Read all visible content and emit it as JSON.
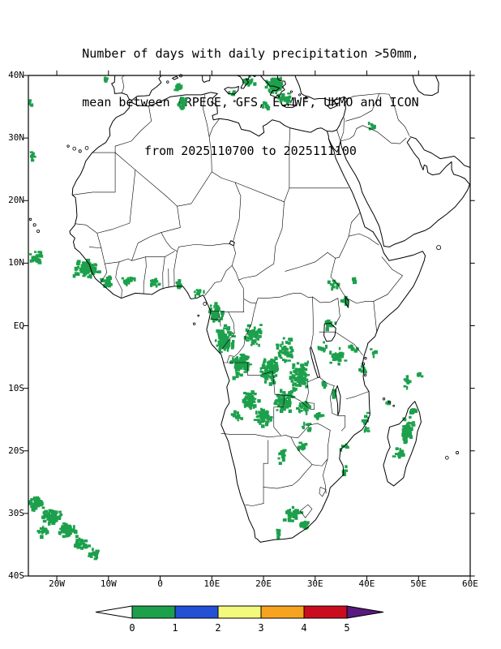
{
  "title": {
    "line1": "Number of days with daily precipitation >50mm,",
    "line2": "mean between ARPEGE, GFS, ECMWF, UKMO and ICON",
    "line3": "from 2025110700 to 2025111100"
  },
  "axes": {
    "lat_ticks": [
      {
        "label": "40N",
        "deg": 40
      },
      {
        "label": "30N",
        "deg": 30
      },
      {
        "label": "20N",
        "deg": 20
      },
      {
        "label": "10N",
        "deg": 10
      },
      {
        "label": "EQ",
        "deg": 0
      },
      {
        "label": "10S",
        "deg": -10
      },
      {
        "label": "20S",
        "deg": -20
      },
      {
        "label": "30S",
        "deg": -30
      },
      {
        "label": "40S",
        "deg": -40
      }
    ],
    "lon_ticks": [
      {
        "label": "20W",
        "deg": -20
      },
      {
        "label": "10W",
        "deg": -10
      },
      {
        "label": "0",
        "deg": 0
      },
      {
        "label": "10E",
        "deg": 10
      },
      {
        "label": "20E",
        "deg": 20
      },
      {
        "label": "30E",
        "deg": 30
      },
      {
        "label": "40E",
        "deg": 40
      },
      {
        "label": "50E",
        "deg": 50
      },
      {
        "label": "60E",
        "deg": 60
      }
    ]
  },
  "chart_data": {
    "type": "heatmap",
    "title": "Number of days with daily precipitation >50mm, mean between ARPEGE, GFS, ECMWF, UKMO and ICON",
    "subtitle": "from 2025110700 to 2025111100",
    "variable": "days with daily precipitation >50mm",
    "threshold_mm": 50,
    "models": [
      "ARPEGE",
      "GFS",
      "ECMWF",
      "UKMO",
      "ICON"
    ],
    "period_start": "2025110700",
    "period_end": "2025111100",
    "map_extent": {
      "lon_min": -25.5,
      "lon_max": 60,
      "lat_min": -40,
      "lat_max": 40
    },
    "colorbar": {
      "boundaries": [
        "0",
        "1",
        "2",
        "3",
        "4",
        "5"
      ],
      "colors": [
        "#ffffff",
        "#1ca04c",
        "#2450d6",
        "#f3f97b",
        "#f6a41f",
        "#c90d1e",
        "#571a7e"
      ]
    },
    "region_value_days": "0-1",
    "precip_regions": [
      {
        "lon": -10.8,
        "lat": 39.6,
        "rx": 0.7,
        "ry": 0.5,
        "n": 8
      },
      {
        "lon": 3.3,
        "lat": 38.3,
        "rx": 1.0,
        "ry": 0.8,
        "n": 14
      },
      {
        "lon": 3.9,
        "lat": 35.6,
        "rx": 1.2,
        "ry": 1.3,
        "n": 22
      },
      {
        "lon": 21.8,
        "lat": 38.6,
        "rx": 2.2,
        "ry": 1.6,
        "n": 70
      },
      {
        "lon": 23.8,
        "lat": 36.6,
        "rx": 1.5,
        "ry": 1.2,
        "n": 25
      },
      {
        "lon": 20.3,
        "lat": 35.4,
        "rx": 1.2,
        "ry": 0.9,
        "n": 12
      },
      {
        "lon": 16.8,
        "lat": 39.3,
        "rx": 1.4,
        "ry": 0.9,
        "n": 20
      },
      {
        "lon": 13.8,
        "lat": 37.4,
        "rx": 0.8,
        "ry": 0.6,
        "n": 6
      },
      {
        "lon": 40.8,
        "lat": 32.2,
        "rx": 0.9,
        "ry": 0.7,
        "n": 10
      },
      {
        "lon": -25.0,
        "lat": 27.3,
        "rx": 0.6,
        "ry": 1.0,
        "n": 8
      },
      {
        "lon": -25.2,
        "lat": 35.8,
        "rx": 0.5,
        "ry": 0.7,
        "n": 5
      },
      {
        "lon": -24.2,
        "lat": 11.2,
        "rx": 1.6,
        "ry": 1.2,
        "n": 25
      },
      {
        "lon": -14.6,
        "lat": 9.2,
        "rx": 3.2,
        "ry": 1.8,
        "n": 90
      },
      {
        "lon": -10.5,
        "lat": 7.2,
        "rx": 1.6,
        "ry": 1.2,
        "n": 25
      },
      {
        "lon": -6.3,
        "lat": 7.6,
        "rx": 1.8,
        "ry": 1.1,
        "n": 16
      },
      {
        "lon": -1.5,
        "lat": 7.0,
        "rx": 2.0,
        "ry": 1.0,
        "n": 16
      },
      {
        "lon": 3.2,
        "lat": 6.9,
        "rx": 1.5,
        "ry": 0.9,
        "n": 10
      },
      {
        "lon": 7.2,
        "lat": 5.6,
        "rx": 1.3,
        "ry": 1.0,
        "n": 12
      },
      {
        "lon": 10.6,
        "lat": 2.2,
        "rx": 1.8,
        "ry": 1.8,
        "n": 45
      },
      {
        "lon": 12.3,
        "lat": -2.2,
        "rx": 2.2,
        "ry": 2.6,
        "n": 95
      },
      {
        "lon": 15.3,
        "lat": -5.8,
        "rx": 2.2,
        "ry": 2.6,
        "n": 85
      },
      {
        "lon": 17.8,
        "lat": -1.2,
        "rx": 2.0,
        "ry": 2.2,
        "n": 45
      },
      {
        "lon": 20.8,
        "lat": -6.8,
        "rx": 2.4,
        "ry": 2.8,
        "n": 90
      },
      {
        "lon": 23.8,
        "lat": -3.8,
        "rx": 2.4,
        "ry": 2.6,
        "n": 55
      },
      {
        "lon": 26.6,
        "lat": -7.8,
        "rx": 2.6,
        "ry": 2.8,
        "n": 85
      },
      {
        "lon": 23.8,
        "lat": -11.8,
        "rx": 2.8,
        "ry": 2.2,
        "n": 70
      },
      {
        "lon": 17.2,
        "lat": -11.8,
        "rx": 2.2,
        "ry": 2.0,
        "n": 45
      },
      {
        "lon": 19.8,
        "lat": -14.6,
        "rx": 2.4,
        "ry": 1.8,
        "n": 45
      },
      {
        "lon": 14.8,
        "lat": -14.2,
        "rx": 1.4,
        "ry": 1.2,
        "n": 14
      },
      {
        "lon": 27.4,
        "lat": -12.8,
        "rx": 1.8,
        "ry": 1.5,
        "n": 25
      },
      {
        "lon": 30.4,
        "lat": -14.2,
        "rx": 1.2,
        "ry": 1.0,
        "n": 10
      },
      {
        "lon": 33.4,
        "lat": -10.8,
        "rx": 1.0,
        "ry": 0.9,
        "n": 8
      },
      {
        "lon": 28.2,
        "lat": -15.8,
        "rx": 1.2,
        "ry": 1.0,
        "n": 8
      },
      {
        "lon": 31.4,
        "lat": -9.4,
        "rx": 0.9,
        "ry": 0.8,
        "n": 6
      },
      {
        "lon": 32.6,
        "lat": 0.3,
        "rx": 1.5,
        "ry": 1.3,
        "n": 18
      },
      {
        "lon": 34.2,
        "lat": -4.8,
        "rx": 2.0,
        "ry": 1.8,
        "n": 30
      },
      {
        "lon": 31.2,
        "lat": -3.2,
        "rx": 1.2,
        "ry": 1.0,
        "n": 10
      },
      {
        "lon": 36.8,
        "lat": -3.4,
        "rx": 1.2,
        "ry": 0.9,
        "n": 10
      },
      {
        "lon": 38.8,
        "lat": -6.8,
        "rx": 1.0,
        "ry": 1.0,
        "n": 8
      },
      {
        "lon": 33.2,
        "lat": 6.8,
        "rx": 1.4,
        "ry": 1.0,
        "n": 10
      },
      {
        "lon": 35.6,
        "lat": 4.2,
        "rx": 1.2,
        "ry": 1.0,
        "n": 8
      },
      {
        "lon": 37.4,
        "lat": 7.4,
        "rx": 0.8,
        "ry": 0.7,
        "n": 5
      },
      {
        "lon": 41.2,
        "lat": -4.2,
        "rx": 0.8,
        "ry": 1.0,
        "n": 7
      },
      {
        "lon": 47.6,
        "lat": -8.8,
        "rx": 1.2,
        "ry": 1.0,
        "n": 9
      },
      {
        "lon": 50.2,
        "lat": -7.6,
        "rx": 0.8,
        "ry": 0.7,
        "n": 5
      },
      {
        "lon": 43.9,
        "lat": -12.1,
        "rx": 0.6,
        "ry": 0.5,
        "n": 4
      },
      {
        "lon": 47.6,
        "lat": -16.6,
        "rx": 1.5,
        "ry": 2.4,
        "n": 55
      },
      {
        "lon": 48.6,
        "lat": -13.4,
        "rx": 0.9,
        "ry": 1.0,
        "n": 10
      },
      {
        "lon": 45.8,
        "lat": -20.4,
        "rx": 1.2,
        "ry": 1.4,
        "n": 14
      },
      {
        "lon": 39.4,
        "lat": -14.6,
        "rx": 1.2,
        "ry": 1.2,
        "n": 10
      },
      {
        "lon": 39.8,
        "lat": -16.4,
        "rx": 0.8,
        "ry": 0.7,
        "n": 5
      },
      {
        "lon": 35.4,
        "lat": -19.2,
        "rx": 1.0,
        "ry": 0.8,
        "n": 6
      },
      {
        "lon": 35.2,
        "lat": -23.0,
        "rx": 0.8,
        "ry": 1.2,
        "n": 6
      },
      {
        "lon": 23.2,
        "lat": -20.6,
        "rx": 1.8,
        "ry": 1.4,
        "n": 12
      },
      {
        "lon": 27.2,
        "lat": -19.2,
        "rx": 1.5,
        "ry": 1.2,
        "n": 10
      },
      {
        "lon": 25.4,
        "lat": -29.8,
        "rx": 2.0,
        "ry": 1.8,
        "n": 40
      },
      {
        "lon": 27.8,
        "lat": -31.6,
        "rx": 1.5,
        "ry": 1.3,
        "n": 18
      },
      {
        "lon": 22.8,
        "lat": -32.8,
        "rx": 1.2,
        "ry": 0.9,
        "n": 8
      },
      {
        "lon": -24.2,
        "lat": -28.2,
        "rx": 1.8,
        "ry": 1.4,
        "n": 55
      },
      {
        "lon": -21.2,
        "lat": -30.2,
        "rx": 2.2,
        "ry": 1.5,
        "n": 65
      },
      {
        "lon": -18.2,
        "lat": -32.4,
        "rx": 2.2,
        "ry": 1.5,
        "n": 60
      },
      {
        "lon": -22.8,
        "lat": -32.6,
        "rx": 1.4,
        "ry": 1.0,
        "n": 18
      },
      {
        "lon": -15.4,
        "lat": -34.6,
        "rx": 1.8,
        "ry": 1.3,
        "n": 35
      },
      {
        "lon": -12.8,
        "lat": -36.2,
        "rx": 1.4,
        "ry": 1.0,
        "n": 14
      }
    ]
  }
}
